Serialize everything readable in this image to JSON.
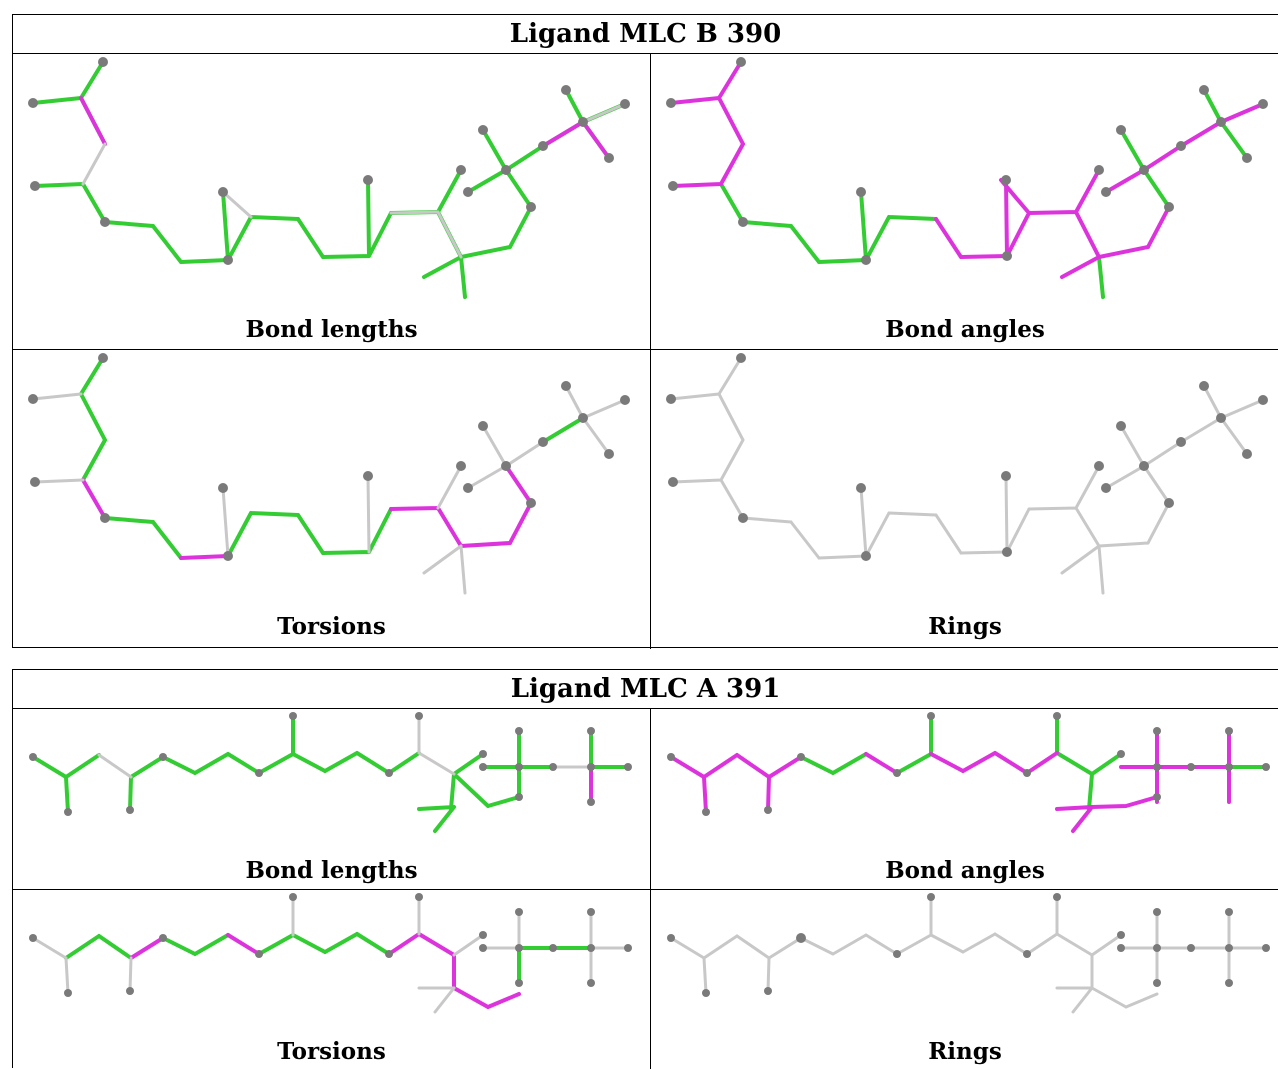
{
  "panels": [
    {
      "title": "Ligand MLC B 390",
      "cells": [
        {
          "caption": "Bond lengths"
        },
        {
          "caption": "Bond angles"
        },
        {
          "caption": "Torsions"
        },
        {
          "caption": "Rings"
        }
      ]
    },
    {
      "title": "Ligand MLC A 391",
      "cells": [
        {
          "caption": "Bond lengths"
        },
        {
          "caption": "Bond angles"
        },
        {
          "caption": "Torsions"
        },
        {
          "caption": "Rings"
        }
      ]
    }
  ],
  "colors": {
    "green": "#33cc33",
    "magenta": "#dd33dd",
    "grey": "#c8c8c8",
    "atom": "#7a7a7a"
  }
}
